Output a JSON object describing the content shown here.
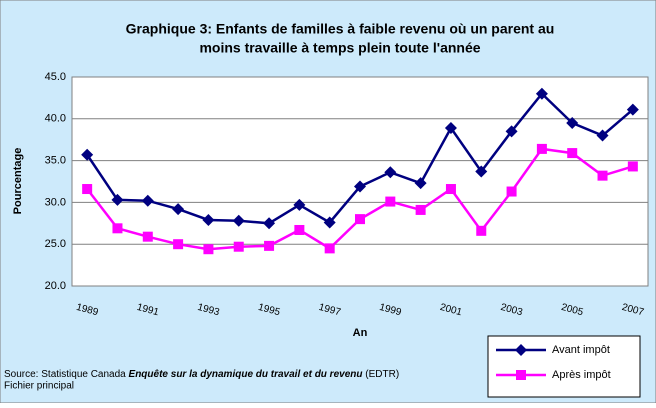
{
  "chart_data": {
    "type": "line",
    "title": [
      "Graphique 3: Enfants de familles à faible revenu où un parent au",
      "moins travaille à temps plein toute l'année"
    ],
    "ylabel": "Pourcentage",
    "xlabel": "An",
    "categories": [
      "1989",
      null,
      "1991",
      null,
      "1993",
      null,
      "1995",
      null,
      "1997",
      null,
      "1999",
      null,
      "2001",
      null,
      "2003",
      null,
      "2005",
      null,
      "2007"
    ],
    "series": [
      {
        "name": "Avant impôt",
        "color": "#000080",
        "marker": "diamond",
        "values": [
          35.7,
          30.3,
          30.2,
          29.2,
          27.9,
          27.8,
          27.5,
          29.7,
          27.6,
          31.9,
          33.6,
          32.3,
          38.9,
          33.7,
          38.5,
          43.0,
          39.5,
          38.0,
          41.1
        ]
      },
      {
        "name": "Après impôt",
        "color": "#ff00ff",
        "marker": "square",
        "values": [
          31.6,
          26.9,
          25.9,
          25.0,
          24.4,
          24.7,
          24.8,
          26.7,
          24.5,
          28.0,
          30.1,
          29.1,
          31.6,
          26.6,
          31.3,
          36.4,
          35.9,
          33.2,
          34.3
        ]
      }
    ],
    "ylim": [
      20,
      45
    ],
    "yticks": [
      {
        "value": 20,
        "label": "20.0"
      },
      {
        "value": 25,
        "label": "25.0"
      },
      {
        "value": 30,
        "label": "30.0"
      },
      {
        "value": 35,
        "label": "35.0"
      },
      {
        "value": 40,
        "label": "40.0"
      },
      {
        "value": 45,
        "label": "45.0"
      }
    ],
    "grid": true,
    "source": {
      "prefix": "Source: Statistique Canada",
      "title": "Enquête sur la dynamique du travail et du revenu",
      "suffix": "(EDTR)",
      "line2": "Fichier principal"
    }
  }
}
